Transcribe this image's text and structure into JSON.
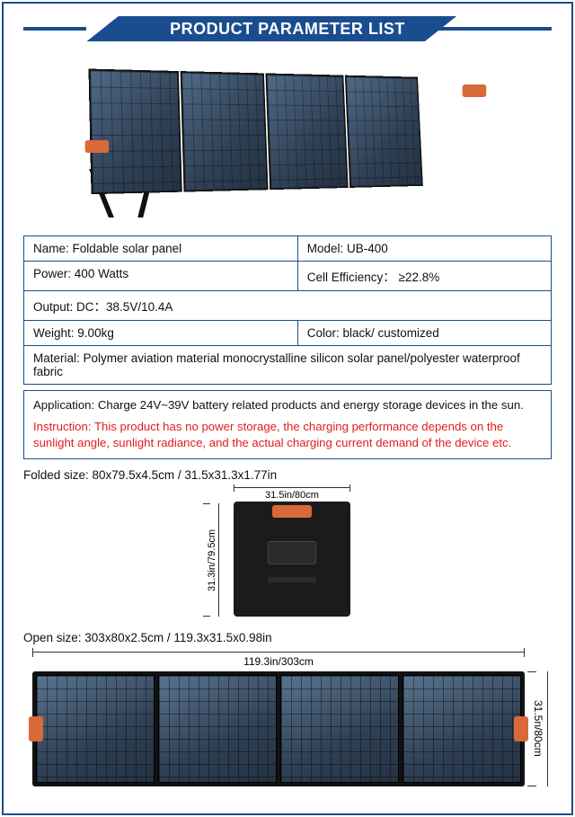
{
  "header": {
    "title": "PRODUCT PARAMETER LIST"
  },
  "specs": {
    "name_label": "Name:",
    "name_value": "Foldable solar panel",
    "model_label": "Model:",
    "model_value": "UB-400",
    "power_label": "Power:",
    "power_value": "400 Watts",
    "eff_label": "Cell Efficiency：",
    "eff_value": "≥22.8%",
    "output_label": "Output:",
    "output_value": "DC：38.5V/10.4A",
    "weight_label": "Weight:",
    "weight_value": "9.00kg",
    "color_label": "Color:",
    "color_value": "black/ customized",
    "material_label": "Material:",
    "material_value": "Polymer aviation material monocrystalline silicon solar panel/polyester waterproof fabric"
  },
  "application": {
    "app_label": "Application:",
    "app_text": "Charge 24V~39V battery related products and energy storage devices in the sun.",
    "instr_label": "Instruction:",
    "instr_text": "This product has no power storage, the charging performance depends on the sunlight angle, sunlight radiance, and the actual charging current demand of the device etc."
  },
  "dimensions": {
    "folded_label": "Folded size: 80x79.5x4.5cm / 31.5x31.3x1.77in",
    "folded_width": "31.5in/80cm",
    "folded_height": "31.3in/79.5cm",
    "open_label": "Open size: 303x80x2.5cm / 119.3x31.5x0.98in",
    "open_width": "119.3in/303cm",
    "open_height": "31.5n/80cm"
  },
  "colors": {
    "brand": "#1a4d8f",
    "accent_handle": "#d86a3a",
    "warning_text": "#e21b1b",
    "panel_dark": "#243242",
    "panel_light": "#5a748e"
  }
}
